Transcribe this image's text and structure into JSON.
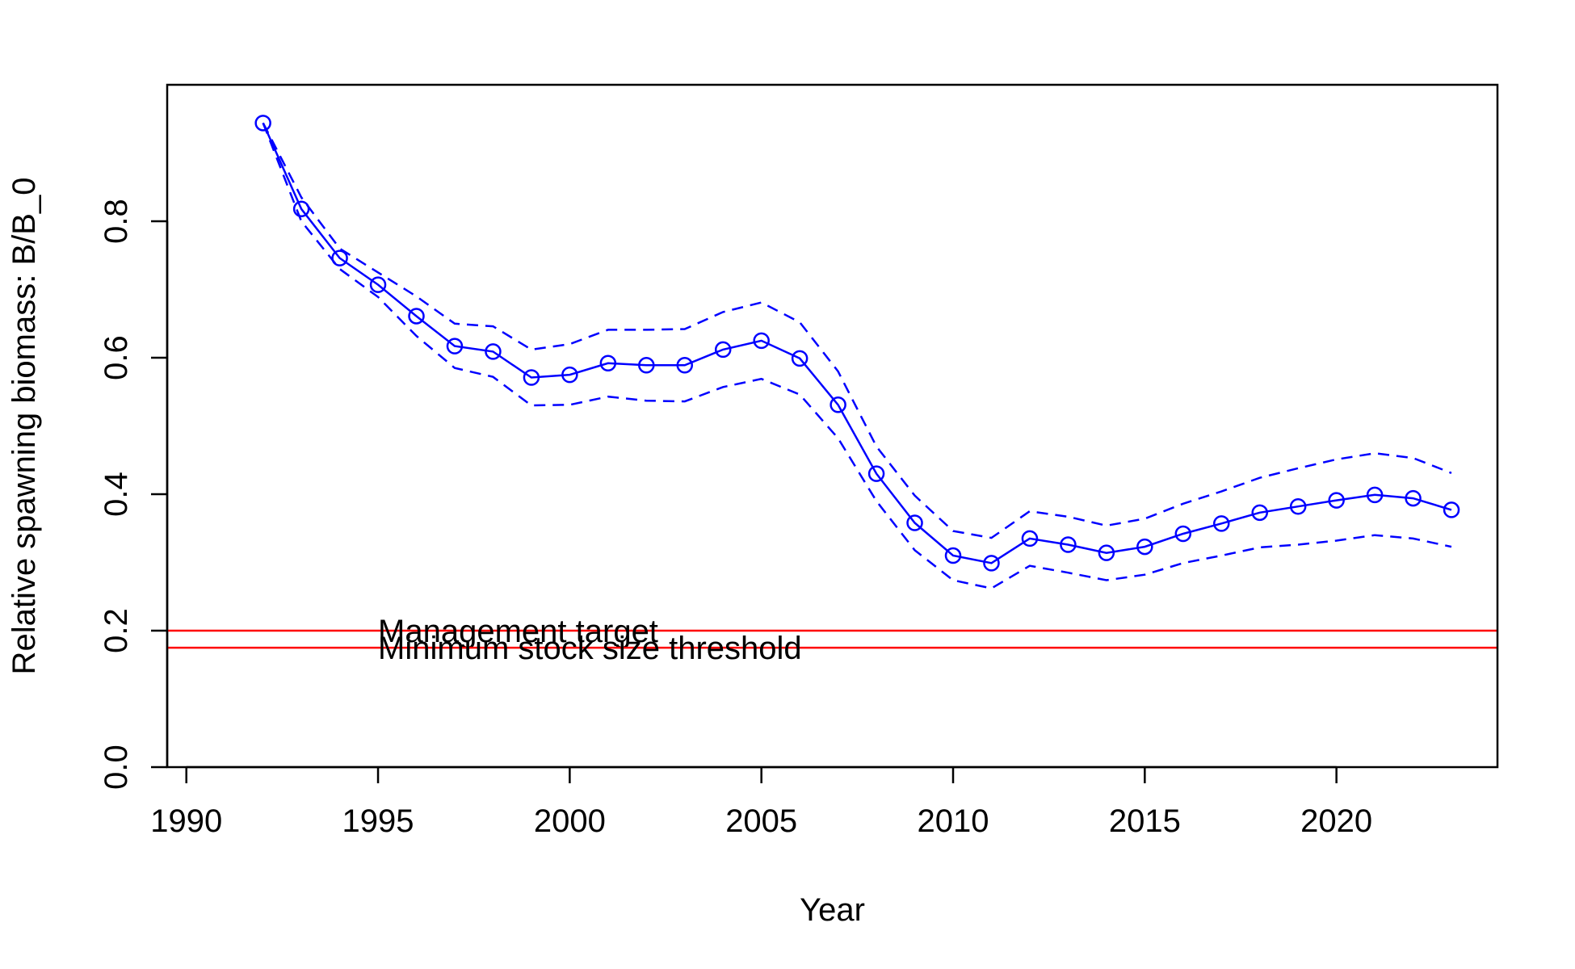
{
  "chart_data": {
    "type": "line",
    "title": "",
    "xlabel": "Year",
    "ylabel": "Relative spawning biomass: B/B_0",
    "xlim": [
      1989.5,
      2024.2
    ],
    "ylim": [
      0.0,
      1.0
    ],
    "x_ticks": [
      "1990",
      "1995",
      "2000",
      "2005",
      "2010",
      "2015",
      "2020"
    ],
    "y_ticks": [
      "0.0",
      "0.2",
      "0.4",
      "0.6",
      "0.8"
    ],
    "grid": false,
    "x": [
      1992,
      1993,
      1994,
      1995,
      1996,
      1997,
      1998,
      1999,
      2000,
      2001,
      2002,
      2003,
      2004,
      2005,
      2006,
      2007,
      2008,
      2009,
      2010,
      2011,
      2012,
      2013,
      2014,
      2015,
      2016,
      2017,
      2018,
      2019,
      2020,
      2021,
      2022,
      2023
    ],
    "series": [
      {
        "role": "estimate",
        "color": "#0000ff",
        "line": "solid",
        "marker": "open-circle",
        "values": [
          0.944,
          0.818,
          0.746,
          0.707,
          0.661,
          0.617,
          0.609,
          0.571,
          0.575,
          0.592,
          0.589,
          0.589,
          0.612,
          0.625,
          0.599,
          0.531,
          0.43,
          0.358,
          0.31,
          0.299,
          0.335,
          0.326,
          0.314,
          0.323,
          0.342,
          0.357,
          0.373,
          0.382,
          0.391,
          0.399,
          0.394,
          0.377
        ]
      },
      {
        "role": "upper-interval",
        "color": "#0000ff",
        "line": "dashed",
        "values": [
          0.944,
          0.835,
          0.76,
          0.725,
          0.69,
          0.65,
          0.646,
          0.612,
          0.62,
          0.641,
          0.641,
          0.642,
          0.667,
          0.681,
          0.652,
          0.58,
          0.47,
          0.398,
          0.346,
          0.336,
          0.375,
          0.367,
          0.354,
          0.364,
          0.386,
          0.404,
          0.424,
          0.438,
          0.451,
          0.46,
          0.453,
          0.431
        ]
      },
      {
        "role": "lower-interval",
        "color": "#0000ff",
        "line": "dashed",
        "values": [
          0.944,
          0.8,
          0.73,
          0.689,
          0.632,
          0.585,
          0.572,
          0.53,
          0.531,
          0.543,
          0.537,
          0.536,
          0.557,
          0.569,
          0.546,
          0.482,
          0.39,
          0.318,
          0.274,
          0.262,
          0.295,
          0.285,
          0.274,
          0.282,
          0.299,
          0.31,
          0.322,
          0.326,
          0.332,
          0.34,
          0.335,
          0.323
        ]
      }
    ],
    "reference_lines": [
      {
        "label": "Management target",
        "value": 0.2,
        "color": "#ff0000",
        "label_x": 1995
      },
      {
        "label": "Minimum stock size threshold",
        "value": 0.175,
        "color": "#ff0000",
        "label_x": 1995
      }
    ]
  }
}
